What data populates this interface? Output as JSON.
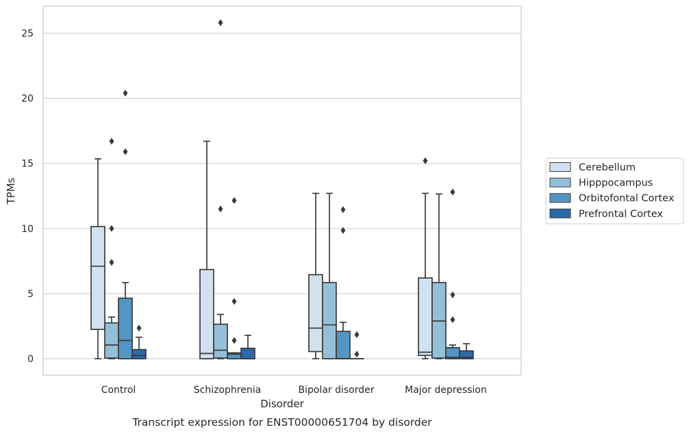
{
  "chart_data": {
    "type": "box",
    "title": "",
    "caption": "Transcript expression for ENST00000651704 by disorder",
    "xlabel": "Disorder",
    "ylabel": "TPMs",
    "ylim": [
      -1.3,
      27
    ],
    "yticks": [
      0,
      5,
      10,
      15,
      20,
      25
    ],
    "grid": "horizontal",
    "legend_position": "right",
    "categories": [
      "Control",
      "Schizophrenia",
      "Bipolar disorder",
      "Major depression"
    ],
    "series": [
      {
        "name": "Cerebellum",
        "color": "#d1e1ef",
        "boxes": [
          {
            "whisker_low": 0,
            "q1": 2.25,
            "median": 7.1,
            "q3": 10.15,
            "whisker_high": 15.35,
            "outliers": []
          },
          {
            "whisker_low": 0,
            "q1": 0,
            "median": 0.4,
            "q3": 6.85,
            "whisker_high": 16.7,
            "outliers": []
          },
          {
            "whisker_low": 0,
            "q1": 0.55,
            "median": 2.35,
            "q3": 6.45,
            "whisker_high": 12.7,
            "outliers": []
          },
          {
            "whisker_low": 0,
            "q1": 0.25,
            "median": 0.5,
            "q3": 6.2,
            "whisker_high": 12.7,
            "outliers": [
              15.2
            ]
          }
        ]
      },
      {
        "name": "Hipppocampus",
        "color": "#94bfd9",
        "boxes": [
          {
            "whisker_low": 0,
            "q1": 0.05,
            "median": 1.05,
            "q3": 2.75,
            "whisker_high": 3.2,
            "outliers": [
              16.7,
              10.0,
              7.4
            ]
          },
          {
            "whisker_low": 0,
            "q1": 0.05,
            "median": 0.65,
            "q3": 2.65,
            "whisker_high": 3.4,
            "outliers": [
              25.8,
              11.5
            ]
          },
          {
            "whisker_low": 0,
            "q1": 0,
            "median": 2.6,
            "q3": 5.85,
            "whisker_high": 12.7,
            "outliers": []
          },
          {
            "whisker_low": 0,
            "q1": 0.05,
            "median": 2.9,
            "q3": 5.85,
            "whisker_high": 12.65,
            "outliers": []
          }
        ]
      },
      {
        "name": "Orbitofontal Cortex",
        "color": "#5496c3",
        "boxes": [
          {
            "whisker_low": 0,
            "q1": 0,
            "median": 1.4,
            "q3": 4.65,
            "whisker_high": 5.85,
            "outliers": [
              20.4,
              15.9
            ]
          },
          {
            "whisker_low": 0,
            "q1": 0,
            "median": 0.35,
            "q3": 0.45,
            "whisker_high": 0.45,
            "outliers": [
              12.15,
              4.4,
              1.4
            ]
          },
          {
            "whisker_low": 0,
            "q1": 0,
            "median": 0,
            "q3": 2.1,
            "whisker_high": 2.8,
            "outliers": [
              11.45,
              9.85
            ]
          },
          {
            "whisker_low": 0,
            "q1": 0,
            "median": 0.1,
            "q3": 0.85,
            "whisker_high": 1.05,
            "outliers": [
              12.8,
              4.9,
              3.0
            ]
          }
        ]
      },
      {
        "name": "Prefrontal Cortex",
        "color": "#2b69a8",
        "boxes": [
          {
            "whisker_low": 0,
            "q1": 0,
            "median": 0.25,
            "q3": 0.7,
            "whisker_high": 1.65,
            "outliers": [
              2.35
            ]
          },
          {
            "whisker_low": 0,
            "q1": 0,
            "median": 0,
            "q3": 0.8,
            "whisker_high": 1.8,
            "outliers": []
          },
          {
            "whisker_low": 0,
            "q1": 0,
            "median": 0,
            "q3": 0,
            "whisker_high": 0,
            "outliers": [
              1.85,
              0.35
            ]
          },
          {
            "whisker_low": 0,
            "q1": 0,
            "median": 0.1,
            "q3": 0.6,
            "whisker_high": 1.15,
            "outliers": []
          }
        ]
      }
    ]
  }
}
